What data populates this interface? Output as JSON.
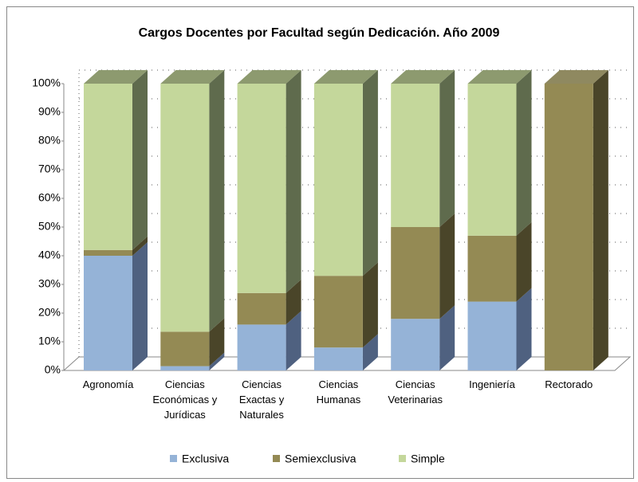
{
  "chart_data": {
    "type": "bar3d_stacked_percent",
    "title": "Cargos Docentes por Facultad según Dedicación. Año 2009",
    "categories": [
      "Agronomía",
      "Ciencias Económicas y Jurídicas",
      "Ciencias Exactas y Naturales",
      "Ciencias Humanas",
      "Ciencias Veterinarias",
      "Ingeniería",
      "Rectorado"
    ],
    "series": [
      {
        "name": "Exclusiva",
        "color": "#95b3d7",
        "side": "#4f6180",
        "top": "#7f93ad",
        "values": [
          40,
          1.5,
          16,
          8,
          18,
          24,
          0
        ]
      },
      {
        "name": "Semiexclusiva",
        "color": "#948a54",
        "side": "#4a4529",
        "top": "#8f8960",
        "values": [
          2,
          12,
          11,
          25,
          32,
          23,
          100
        ]
      },
      {
        "name": "Simple",
        "color": "#c4d79b",
        "side": "#5f6b4d",
        "top": "#8d9a6f",
        "values": [
          58,
          86.5,
          73,
          67,
          50,
          53,
          0
        ]
      }
    ],
    "ylim": [
      0,
      100
    ],
    "yticks": [
      {
        "value": 0,
        "label": "0%"
      },
      {
        "value": 10,
        "label": "10%"
      },
      {
        "value": 20,
        "label": "20%"
      },
      {
        "value": 30,
        "label": "30%"
      },
      {
        "value": 40,
        "label": "40%"
      },
      {
        "value": 50,
        "label": "50%"
      },
      {
        "value": 60,
        "label": "60%"
      },
      {
        "value": 70,
        "label": "70%"
      },
      {
        "value": 80,
        "label": "80%"
      },
      {
        "value": 90,
        "label": "90%"
      },
      {
        "value": 100,
        "label": "100%"
      }
    ],
    "grid": true,
    "legend": "bottom"
  }
}
